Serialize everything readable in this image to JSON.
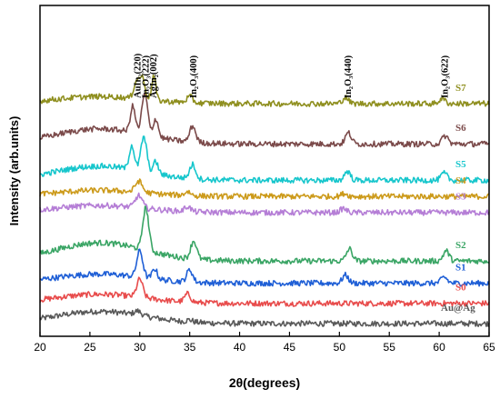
{
  "chart_data": {
    "type": "line",
    "xlabel": "2θ(degrees)",
    "ylabel": "Intensity (arb.units)",
    "xlim": [
      20,
      65
    ],
    "xticks": [
      20,
      25,
      30,
      35,
      40,
      45,
      50,
      55,
      60,
      65
    ],
    "y_ticks_shown": false,
    "grid": false,
    "peak_labels": [
      {
        "label": "AuIn₂(220)",
        "x": 29.8
      },
      {
        "label": "In₂O₃(222)",
        "x": 30.6
      },
      {
        "label": "AgIn₂(002)",
        "x": 31.4
      },
      {
        "label": "In₂O₃(400)",
        "x": 35.4
      },
      {
        "label": "In₂O₃(440)",
        "x": 50.9
      },
      {
        "label": "In₂O₃(622)",
        "x": 60.6
      }
    ],
    "series": [
      {
        "name": "Au@Ag",
        "color": "#595959",
        "baseline": 0.0,
        "hump": {
          "center": 26,
          "width": 4.5,
          "amp": 0.6
        },
        "peaks": [
          {
            "x": 29.8,
            "h": 0.2,
            "w": 0.35
          },
          {
            "x": 35.0,
            "h": 0.1,
            "w": 0.3
          }
        ]
      },
      {
        "name": "S0",
        "color": "#e84c4c",
        "baseline": 1.0,
        "hump": {
          "center": 26,
          "width": 4.5,
          "amp": 0.45
        },
        "peaks": [
          {
            "x": 30.0,
            "h": 0.9,
            "w": 0.3
          },
          {
            "x": 34.8,
            "h": 0.4,
            "w": 0.3
          }
        ]
      },
      {
        "name": "S1",
        "color": "#1f5fd6",
        "baseline": 2.0,
        "hump": {
          "center": 26,
          "width": 4.5,
          "amp": 0.45
        },
        "peaks": [
          {
            "x": 30.0,
            "h": 1.3,
            "w": 0.3
          },
          {
            "x": 31.5,
            "h": 0.5,
            "w": 0.25
          },
          {
            "x": 35.0,
            "h": 0.6,
            "w": 0.3
          },
          {
            "x": 50.6,
            "h": 0.4,
            "w": 0.3
          },
          {
            "x": 60.5,
            "h": 0.3,
            "w": 0.3
          }
        ]
      },
      {
        "name": "S2",
        "color": "#3aa565",
        "baseline": 3.1,
        "hump": {
          "center": 26,
          "width": 4.5,
          "amp": 0.9
        },
        "peaks": [
          {
            "x": 30.6,
            "h": 2.1,
            "w": 0.3
          },
          {
            "x": 35.4,
            "h": 0.9,
            "w": 0.3
          },
          {
            "x": 51.0,
            "h": 0.6,
            "w": 0.3
          },
          {
            "x": 60.7,
            "h": 0.5,
            "w": 0.3
          }
        ]
      },
      {
        "name": "S3",
        "color": "#b57ed6",
        "baseline": 5.5,
        "hump": {
          "center": 26,
          "width": 4.5,
          "amp": 0.35
        },
        "peaks": [
          {
            "x": 29.9,
            "h": 0.6,
            "w": 0.35
          },
          {
            "x": 34.8,
            "h": 0.25,
            "w": 0.3
          },
          {
            "x": 50.4,
            "h": 0.2,
            "w": 0.3
          }
        ]
      },
      {
        "name": "S4",
        "color": "#cc9a1a",
        "baseline": 6.3,
        "hump": {
          "center": 26,
          "width": 4.5,
          "amp": 0.3
        },
        "peaks": [
          {
            "x": 29.9,
            "h": 0.55,
            "w": 0.35
          },
          {
            "x": 34.8,
            "h": 0.2,
            "w": 0.3
          },
          {
            "x": 50.5,
            "h": 0.15,
            "w": 0.3
          }
        ]
      },
      {
        "name": "S5",
        "color": "#16c6cc",
        "baseline": 7.1,
        "hump": {
          "center": 26,
          "width": 4.5,
          "amp": 0.7
        },
        "peaks": [
          {
            "x": 29.2,
            "h": 1.2,
            "w": 0.25
          },
          {
            "x": 30.4,
            "h": 1.7,
            "w": 0.3
          },
          {
            "x": 31.6,
            "h": 0.6,
            "w": 0.25
          },
          {
            "x": 35.3,
            "h": 0.7,
            "w": 0.3
          },
          {
            "x": 50.8,
            "h": 0.45,
            "w": 0.3
          },
          {
            "x": 60.5,
            "h": 0.35,
            "w": 0.3
          }
        ]
      },
      {
        "name": "S6",
        "color": "#7b4a4a",
        "baseline": 8.9,
        "hump": {
          "center": 26,
          "width": 4.5,
          "amp": 0.75
        },
        "peaks": [
          {
            "x": 29.3,
            "h": 1.3,
            "w": 0.25
          },
          {
            "x": 30.5,
            "h": 2.0,
            "w": 0.3
          },
          {
            "x": 31.6,
            "h": 0.9,
            "w": 0.25
          },
          {
            "x": 35.3,
            "h": 0.8,
            "w": 0.3
          },
          {
            "x": 50.9,
            "h": 0.55,
            "w": 0.3
          },
          {
            "x": 60.6,
            "h": 0.4,
            "w": 0.3
          }
        ]
      },
      {
        "name": "S7",
        "color": "#8f8f1f",
        "baseline": 10.9,
        "hump": {
          "center": 26,
          "width": 4.5,
          "amp": 0.35
        },
        "peaks": [
          {
            "x": 29.6,
            "h": 0.7,
            "w": 0.25
          },
          {
            "x": 30.2,
            "h": 1.1,
            "w": 0.3
          },
          {
            "x": 31.4,
            "h": 1.2,
            "w": 0.2
          },
          {
            "x": 35.0,
            "h": 0.3,
            "w": 0.3
          },
          {
            "x": 50.6,
            "h": 0.3,
            "w": 0.3
          },
          {
            "x": 60.3,
            "h": 0.25,
            "w": 0.3
          }
        ]
      }
    ]
  }
}
